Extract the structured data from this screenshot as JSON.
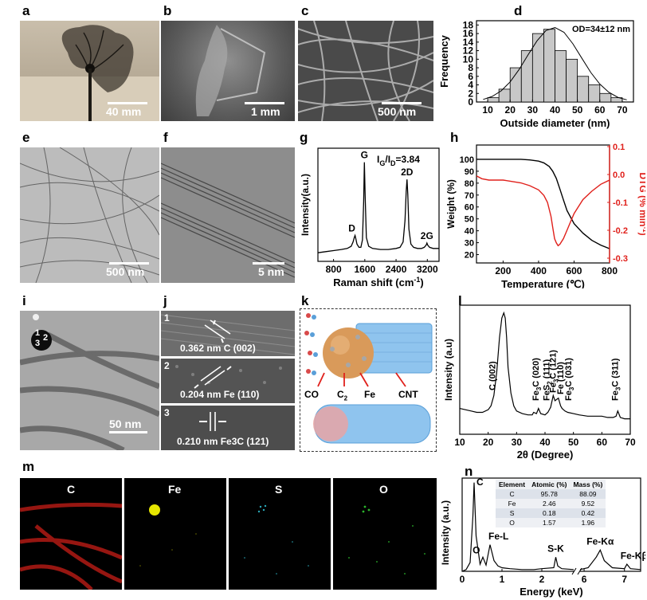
{
  "panels": {
    "a": "a",
    "b": "b",
    "c": "c",
    "d": "d",
    "e": "e",
    "f": "f",
    "g": "g",
    "h": "h",
    "i": "i",
    "j": "j",
    "k": "k",
    "l": "l",
    "m": "m",
    "n": "n"
  },
  "scale_bars": {
    "a": "40 mm",
    "b": "1 mm",
    "c": "500 nm",
    "e": "500 nm",
    "f": "5 nm",
    "i": "50 nm"
  },
  "panel_i_markers": [
    "1",
    "2",
    "3"
  ],
  "panel_j": {
    "rows": [
      {
        "index": "1",
        "label": "0.362 nm C (002)"
      },
      {
        "index": "2",
        "label": "0.204 nm Fe (110)"
      },
      {
        "index": "3",
        "label": "0.210 nm Fe3C (121)"
      }
    ]
  },
  "panel_k": {
    "labels": [
      "CO",
      "C2",
      "Fe",
      "CNT"
    ]
  },
  "eds_maps": [
    "C",
    "Fe",
    "S",
    "O"
  ],
  "colors": {
    "dtg": "#e0201b",
    "eds_c": "#d9251d",
    "eds_fe": "#e6e600",
    "eds_s": "#2aa8b8",
    "eds_o": "#2bb52b",
    "k_particle": "#d99a5a",
    "k_tube": "#5aa2e0"
  },
  "chart_data": [
    {
      "id": "d",
      "type": "bar",
      "title": "",
      "annotation": "OD=34±12 nm",
      "xlabel": "Outside diameter (nm)",
      "ylabel": "Frequency",
      "x_ticks": [
        10,
        20,
        30,
        40,
        50,
        60,
        70
      ],
      "y_ticks": [
        0,
        2,
        4,
        6,
        8,
        10,
        12,
        14,
        16,
        18
      ],
      "xlim": [
        5,
        75
      ],
      "ylim": [
        0,
        19
      ],
      "bin_width": 5,
      "bins": [
        {
          "x": 12.5,
          "value": 1
        },
        {
          "x": 17.5,
          "value": 3
        },
        {
          "x": 22.5,
          "value": 8
        },
        {
          "x": 27.5,
          "value": 12
        },
        {
          "x": 32.5,
          "value": 16
        },
        {
          "x": 37.5,
          "value": 17
        },
        {
          "x": 42.5,
          "value": 12
        },
        {
          "x": 47.5,
          "value": 10
        },
        {
          "x": 52.5,
          "value": 6
        },
        {
          "x": 57.5,
          "value": 4
        },
        {
          "x": 62.5,
          "value": 2
        },
        {
          "x": 67.5,
          "value": 1
        }
      ],
      "fit_curve": {
        "x": [
          8,
          12,
          16,
          20,
          24,
          28,
          32,
          36,
          40,
          44,
          48,
          52,
          56,
          60,
          64,
          68,
          72
        ],
        "y": [
          0.6,
          1.3,
          2.6,
          4.7,
          7.6,
          11.0,
          14.3,
          16.7,
          17.4,
          16.3,
          13.6,
          10.2,
          6.9,
          4.2,
          2.3,
          1.1,
          0.5
        ]
      }
    },
    {
      "id": "g",
      "type": "line",
      "xlabel": "Raman shift (cm",
      "xlabel_sup": "-1",
      "xlabel_end": ")",
      "ylabel": "Intensity(a.u.)",
      "annotation_main": "I",
      "annotation_sub1": "G",
      "annotation_mid": "/I",
      "annotation_sub2": "D",
      "annotation_end": "=3.84",
      "x_ticks": [
        800,
        1600,
        2400,
        3200
      ],
      "xlim": [
        400,
        3500
      ],
      "ylim": [
        0,
        105
      ],
      "peaks": [
        {
          "name": "D",
          "x": 1350
        },
        {
          "name": "G",
          "x": 1590
        },
        {
          "name": "2D",
          "x": 2680
        },
        {
          "name": "2G",
          "x": 3190
        }
      ],
      "series": [
        {
          "x": [
            400,
            600,
            800,
            1000,
            1150,
            1250,
            1300,
            1330,
            1350,
            1370,
            1400,
            1450,
            1500,
            1540,
            1570,
            1590,
            1610,
            1640,
            1700,
            1800,
            2000,
            2200,
            2400,
            2500,
            2580,
            2630,
            2660,
            2680,
            2700,
            2730,
            2780,
            2850,
            2950,
            3050,
            3120,
            3170,
            3190,
            3210,
            3260,
            3350,
            3450,
            3500
          ],
          "y": [
            8,
            9,
            10,
            11,
            12,
            14,
            18,
            22,
            24,
            21,
            16,
            13,
            13,
            20,
            55,
            92,
            60,
            22,
            14,
            12,
            11,
            11,
            12,
            13,
            18,
            38,
            65,
            76,
            62,
            30,
            16,
            13,
            12,
            12,
            13,
            15,
            17,
            15,
            13,
            12,
            12,
            12
          ]
        }
      ]
    },
    {
      "id": "h",
      "type": "line",
      "xlabel": "Temperature (℃)",
      "ylabel_left": "Weight (%)",
      "ylabel_right": "DTG (% min",
      "ylabel_right_sup": "-1",
      "ylabel_right_end": ")",
      "x_ticks": [
        200,
        400,
        600,
        800
      ],
      "y_left_ticks": [
        20,
        30,
        40,
        50,
        60,
        70,
        80,
        90,
        100
      ],
      "y_right_ticks": [
        0.1,
        0.0,
        -0.1,
        -0.2,
        -0.3
      ],
      "xlim": [
        50,
        800
      ],
      "ylim_left": [
        13,
        112
      ],
      "ylim_right": [
        -0.3,
        0.1
      ],
      "series": [
        {
          "name": "Weight",
          "axis": "left",
          "color": "#000000",
          "x": [
            50,
            100,
            200,
            300,
            350,
            400,
            430,
            460,
            480,
            500,
            520,
            540,
            560,
            600,
            650,
            700,
            750,
            800
          ],
          "y": [
            100,
            100,
            100,
            100,
            99.5,
            98.5,
            97,
            94,
            90,
            84,
            75,
            66,
            57,
            46,
            38,
            32,
            28,
            25
          ]
        },
        {
          "name": "DTG",
          "axis": "right",
          "color": "#e0201b",
          "x": [
            50,
            80,
            120,
            200,
            300,
            350,
            400,
            430,
            450,
            470,
            480,
            490,
            500,
            510,
            520,
            540,
            560,
            580,
            600,
            620,
            650,
            700,
            750,
            800
          ],
          "y": [
            -0.005,
            -0.015,
            -0.02,
            -0.02,
            -0.03,
            -0.04,
            -0.055,
            -0.075,
            -0.1,
            -0.15,
            -0.19,
            -0.23,
            -0.245,
            -0.255,
            -0.25,
            -0.23,
            -0.2,
            -0.17,
            -0.14,
            -0.12,
            -0.09,
            -0.06,
            -0.035,
            -0.02
          ]
        }
      ]
    },
    {
      "id": "l",
      "type": "line",
      "xlabel": "2θ (Degree)",
      "ylabel": "Intensity (a.u)",
      "x_ticks": [
        10,
        20,
        30,
        40,
        50,
        60,
        70
      ],
      "xlim": [
        10,
        70
      ],
      "ylim": [
        0,
        100
      ],
      "peak_labels": [
        {
          "x": 25.9,
          "label": "C (002)"
        },
        {
          "x": 37.7,
          "label": "Fe",
          "sub": "3",
          "label_end": "C (020)"
        },
        {
          "x": 39.9,
          "label": "FeS",
          "sub": "2",
          "label_end": " (111)"
        },
        {
          "x": 42.9,
          "label": "Fe",
          "sub": "3",
          "label_end": "C (121)"
        },
        {
          "x": 44.7,
          "label": "Fe (110)"
        },
        {
          "x": 45.9,
          "label": "Fe",
          "sub": "3",
          "label_end": "C (031)"
        },
        {
          "x": 65.6,
          "label": "Fe",
          "sub": "3",
          "label_end": "C (311)"
        }
      ],
      "series": [
        {
          "x": [
            10,
            12,
            14,
            16,
            18,
            20,
            21,
            22,
            23,
            24,
            24.8,
            25.5,
            26,
            26.5,
            27,
            28,
            29,
            30,
            32,
            34,
            35.5,
            36,
            37,
            37.7,
            38.5,
            40,
            41,
            42,
            42.9,
            43.5,
            44.7,
            45.5,
            46,
            47,
            48,
            50,
            52,
            55,
            58,
            60,
            62,
            64,
            65,
            65.6,
            66.5,
            68,
            70
          ],
          "y": [
            20,
            19,
            18,
            17,
            17,
            19,
            22,
            30,
            48,
            75,
            90,
            94,
            90,
            75,
            52,
            32,
            22,
            18,
            16,
            15,
            15,
            17,
            16,
            20,
            16,
            15,
            17,
            21,
            30,
            26,
            28,
            22,
            20,
            18,
            17,
            16,
            15,
            14,
            14,
            14,
            13,
            13,
            14,
            18,
            13,
            12,
            12
          ]
        }
      ]
    },
    {
      "id": "n",
      "type": "line",
      "xlabel": "Energy (keV)",
      "ylabel": "Intensity (a.u.)",
      "x_ticks": [
        0,
        1,
        2,
        6,
        7
      ],
      "axis_break_between": [
        2.8,
        5.9
      ],
      "peak_labels": [
        "C",
        "O",
        "Fe-L",
        "S-K",
        "Fe-Kα",
        "Fe-Kβ"
      ],
      "table": {
        "headers": [
          "Element",
          "Atomic (%)",
          "Mass (%)"
        ],
        "rows": [
          [
            "C",
            "95.78",
            "88.09"
          ],
          [
            "Fe",
            "2.46",
            "9.52"
          ],
          [
            "S",
            "0.18",
            "0.42"
          ],
          [
            "O",
            "1.57",
            "1.96"
          ]
        ]
      },
      "series": [
        {
          "x": [
            0,
            0.1,
            0.2,
            0.27,
            0.3,
            0.35,
            0.45,
            0.52,
            0.6,
            0.7,
            0.8,
            0.9,
            1.0,
            1.2,
            1.5,
            1.8,
            2.0,
            2.3,
            2.35,
            2.4,
            2.5,
            2.8,
            5.9,
            6.1,
            6.3,
            6.4,
            6.5,
            6.7,
            7.0,
            7.06,
            7.15,
            7.4
          ],
          "y": [
            0,
            2,
            10,
            62,
            100,
            40,
            8,
            16,
            7,
            30,
            12,
            6,
            4,
            3,
            2,
            2,
            3,
            4,
            16,
            6,
            3,
            2,
            2,
            4,
            16,
            24,
            12,
            4,
            3,
            8,
            3,
            2
          ]
        }
      ]
    }
  ]
}
